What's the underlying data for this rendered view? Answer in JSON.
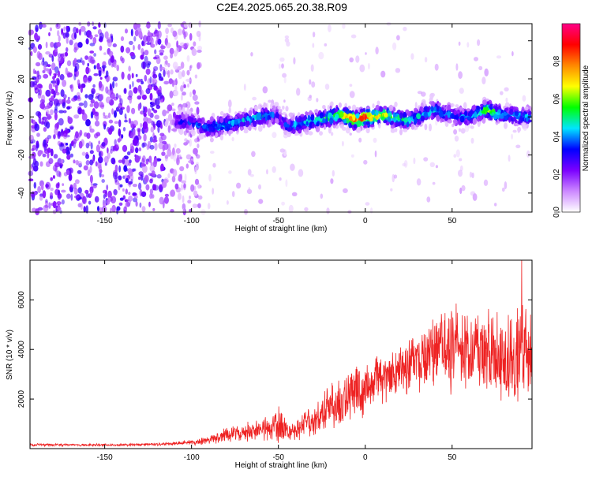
{
  "figure": {
    "title": "C2E4.2025.065.20.38.R09"
  },
  "chart_data": [
    {
      "type": "heatmap",
      "title": "C2E4.2025.065.20.38.R09",
      "xlabel": "Height of straight line (km)",
      "ylabel": "Frequency (Hz)",
      "xlim": [
        -193,
        96
      ],
      "ylim": [
        -50,
        49
      ],
      "xticks": [
        -150,
        -100,
        -50,
        0,
        50
      ],
      "yticks": [
        -40,
        -20,
        0,
        20,
        40
      ],
      "grid": false,
      "colorbar": {
        "label": "Normalized spectral amplitude",
        "range": [
          0,
          1
        ],
        "ticks": [
          0.0,
          0.2,
          0.4,
          0.6,
          0.8
        ],
        "colors": [
          "#ffffff",
          "#cc88ff",
          "#7b00ff",
          "#0000ff",
          "#00e5ff",
          "#00ff00",
          "#ffff00",
          "#ff8800",
          "#ff0000",
          "#ff0088"
        ]
      },
      "signal_track": {
        "x": [
          -110,
          -100,
          -95,
          -90,
          -85,
          -80,
          -75,
          -70,
          -65,
          -60,
          -55,
          -50,
          -45,
          -40,
          -35,
          -30,
          -25,
          -20,
          -15,
          -10,
          -5,
          0,
          5,
          10,
          15,
          20,
          25,
          30,
          35,
          40,
          45,
          50,
          55,
          60,
          65,
          70,
          75,
          80,
          85,
          90,
          95
        ],
        "y": [
          -2,
          -3,
          -5,
          -6,
          -5,
          -4,
          -3,
          -2,
          -1,
          0,
          1,
          0,
          -5,
          -4,
          -3,
          -2,
          -1,
          0,
          1,
          0,
          -2,
          0,
          0,
          1,
          0,
          -1,
          -2,
          0,
          2,
          4,
          2,
          1,
          0,
          0,
          2,
          4,
          2,
          1,
          1,
          0,
          0
        ],
        "amplitude": [
          0.3,
          0.3,
          0.35,
          0.4,
          0.45,
          0.45,
          0.45,
          0.45,
          0.45,
          0.5,
          0.4,
          0.3,
          0.35,
          0.45,
          0.45,
          0.5,
          0.5,
          0.55,
          0.6,
          0.8,
          0.85,
          0.9,
          0.75,
          0.7,
          0.6,
          0.5,
          0.5,
          0.45,
          0.45,
          0.45,
          0.4,
          0.35,
          0.4,
          0.4,
          0.5,
          0.6,
          0.5,
          0.45,
          0.45,
          0.45,
          0.4
        ]
      }
    },
    {
      "type": "line",
      "xlabel": "Height of straight line (km)",
      "ylabel": "SNR (10 * v/v)",
      "xlim": [
        -193,
        96
      ],
      "ylim": [
        0,
        7600
      ],
      "xticks": [
        -150,
        -100,
        -50,
        0,
        50
      ],
      "yticks": [
        2000,
        4000,
        6000
      ],
      "grid": false,
      "line_color": "#ee2222",
      "series": [
        {
          "x": [
            -193,
            -180,
            -170,
            -160,
            -150,
            -140,
            -130,
            -120,
            -110,
            -100,
            -95,
            -90,
            -85,
            -80,
            -75,
            -70,
            -65,
            -60,
            -55,
            -50,
            -45,
            -40,
            -35,
            -30,
            -25,
            -20,
            -15,
            -10,
            -5,
            0,
            5,
            10,
            15,
            20,
            25,
            30,
            35,
            40,
            45,
            50,
            55,
            60,
            65,
            70,
            75,
            80,
            85,
            90,
            95
          ],
          "y": [
            150,
            150,
            150,
            150,
            150,
            150,
            160,
            170,
            200,
            250,
            280,
            350,
            450,
            600,
            600,
            650,
            700,
            700,
            800,
            1100,
            700,
            700,
            1000,
            1200,
            1400,
            1700,
            1800,
            2200,
            2400,
            2400,
            2700,
            2900,
            3000,
            3200,
            3400,
            3500,
            3800,
            4000,
            4000,
            4000,
            4000,
            3800,
            3700,
            3800,
            3700,
            3800,
            3800,
            3700,
            3800
          ],
          "spread": [
            60,
            60,
            60,
            60,
            60,
            60,
            60,
            70,
            80,
            120,
            150,
            200,
            300,
            350,
            350,
            400,
            450,
            450,
            700,
            900,
            500,
            500,
            600,
            800,
            900,
            1000,
            1100,
            1300,
            1300,
            1200,
            1200,
            1200,
            1200,
            1200,
            1300,
            1300,
            1600,
            1800,
            1900,
            1900,
            1900,
            2000,
            2000,
            2000,
            2100,
            2200,
            2300,
            2400,
            2300
          ],
          "peak_y": 7600
        }
      ]
    }
  ]
}
